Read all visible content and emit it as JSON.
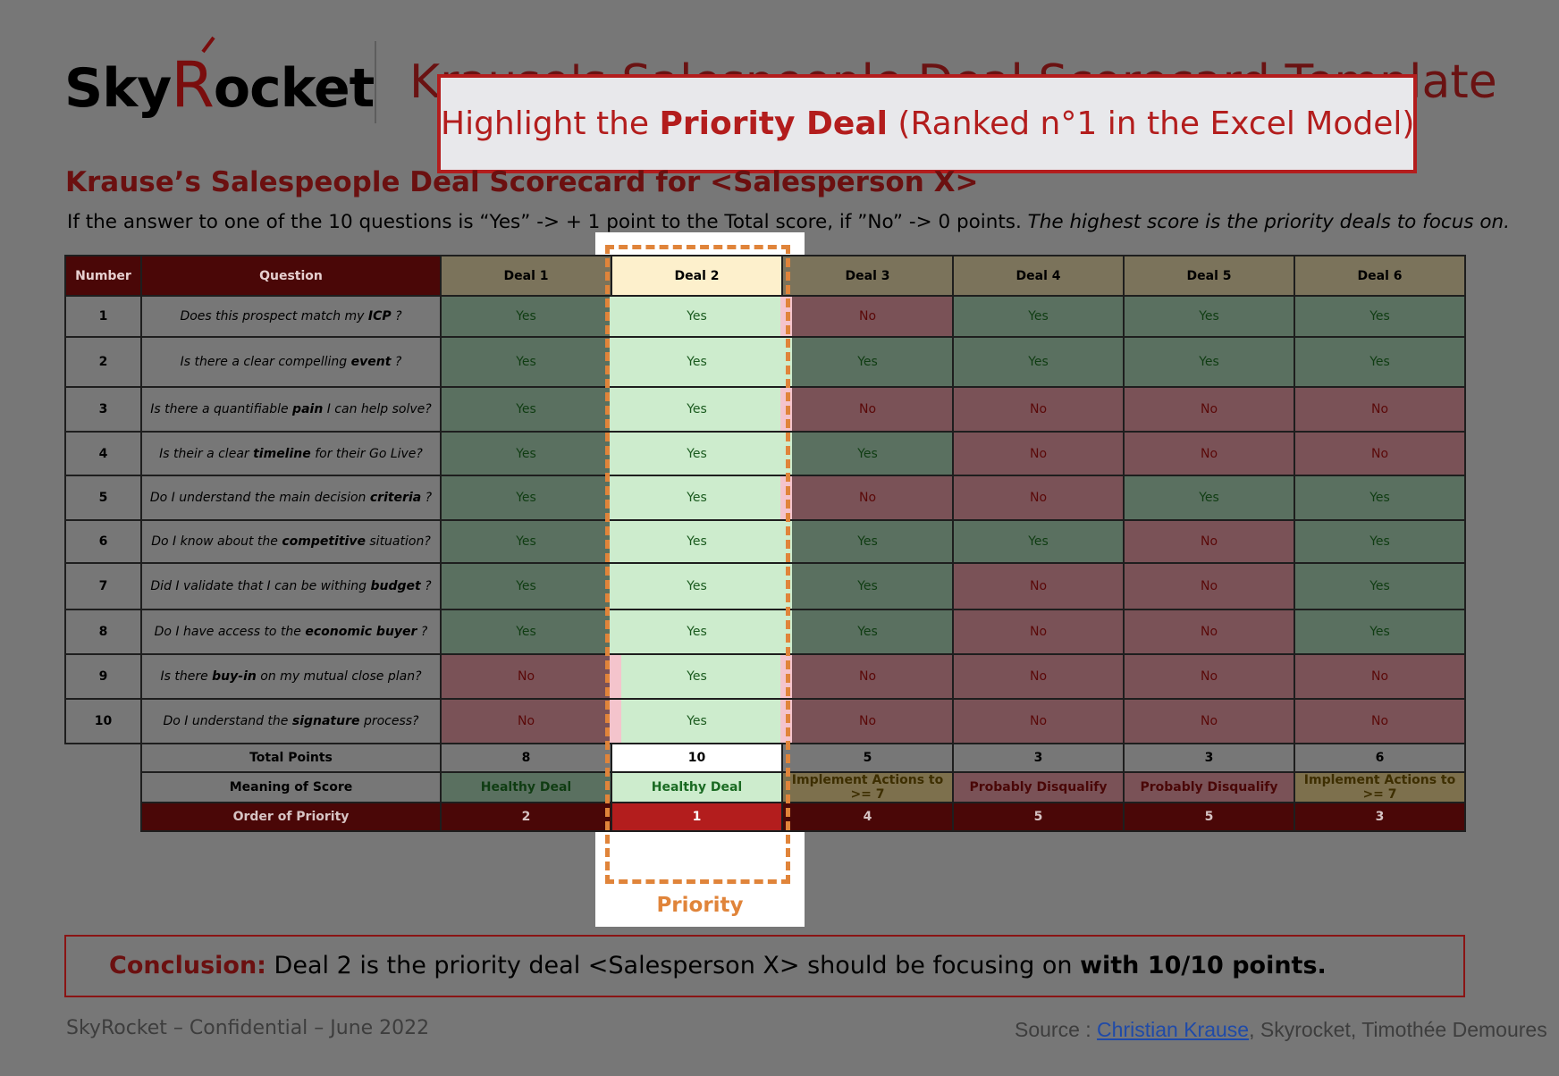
{
  "logo": {
    "text_part1": "Sky",
    "text_r": "R",
    "text_part2": "ocket"
  },
  "background_title": "Krause's Salespeople Deal Scorecard Template",
  "banner": {
    "prefix": "Highlight the ",
    "strong": "Priority Deal",
    "suffix": " (Ranked n°1 in the Excel Model)"
  },
  "card_title": "Krause’s Salespeople Deal Scorecard for <Salesperson X>",
  "intro": {
    "text": "If the answer to one of the 10 questions is “Yes” -> + 1 point to the Total score, if ”No” -> 0 points. ",
    "italic": "The highest score is the priority deals to focus on."
  },
  "table": {
    "headers": {
      "number": "Number",
      "question": "Question",
      "deals": [
        "Deal 1",
        "Deal 2",
        "Deal 3",
        "Deal 4",
        "Deal 5",
        "Deal 6"
      ]
    },
    "rows": [
      {
        "n": "1",
        "q_pre": "Does this prospect match my ",
        "q_bold": "ICP",
        "q_post": " ?",
        "a": [
          "Yes",
          "Yes",
          "No",
          "Yes",
          "Yes",
          "Yes"
        ]
      },
      {
        "n": "2",
        "q_pre": "Is there a clear compelling ",
        "q_bold": "event",
        "q_post": " ?",
        "a": [
          "Yes",
          "Yes",
          "Yes",
          "Yes",
          "Yes",
          "Yes"
        ]
      },
      {
        "n": "3",
        "q_pre": "Is there a quantifiable ",
        "q_bold": "pain",
        "q_post": " I can help solve?",
        "a": [
          "Yes",
          "Yes",
          "No",
          "No",
          "No",
          "No"
        ]
      },
      {
        "n": "4",
        "q_pre": "Is their a clear ",
        "q_bold": "timeline",
        "q_post": " for their Go Live?",
        "a": [
          "Yes",
          "Yes",
          "Yes",
          "No",
          "No",
          "No"
        ]
      },
      {
        "n": "5",
        "q_pre": "Do I understand the main decision ",
        "q_bold": "criteria",
        "q_post": " ?",
        "a": [
          "Yes",
          "Yes",
          "No",
          "No",
          "Yes",
          "Yes"
        ]
      },
      {
        "n": "6",
        "q_pre": "Do I know about the ",
        "q_bold": "competitive",
        "q_post": " situation?",
        "a": [
          "Yes",
          "Yes",
          "Yes",
          "Yes",
          "No",
          "Yes"
        ]
      },
      {
        "n": "7",
        "q_pre": "Did I validate that I can be withing ",
        "q_bold": "budget",
        "q_post": " ?",
        "a": [
          "Yes",
          "Yes",
          "Yes",
          "No",
          "No",
          "Yes"
        ]
      },
      {
        "n": "8",
        "q_pre": "Do I have access to the ",
        "q_bold": "economic buyer",
        "q_post": " ?",
        "a": [
          "Yes",
          "Yes",
          "Yes",
          "No",
          "No",
          "Yes"
        ]
      },
      {
        "n": "9",
        "q_pre": "Is there ",
        "q_bold": "buy-in",
        "q_post": " on my mutual close plan?",
        "a": [
          "No",
          "Yes",
          "No",
          "No",
          "No",
          "No"
        ]
      },
      {
        "n": "10",
        "q_pre": "Do I understand the ",
        "q_bold": "signature",
        "q_post": " process?",
        "a": [
          "No",
          "Yes",
          "No",
          "No",
          "No",
          "No"
        ]
      }
    ],
    "total": {
      "label": "Total Points",
      "values": [
        "8",
        "10",
        "5",
        "3",
        "3",
        "6"
      ]
    },
    "meaning": {
      "label": "Meaning of Score",
      "values": [
        "Healthy Deal",
        "Healthy Deal",
        "Implement Actions to >= 7",
        "Probably Disqualify",
        "Probably Disqualify",
        "Implement Actions to >= 7"
      ]
    },
    "order": {
      "label": "Order of Priority",
      "values": [
        "2",
        "1",
        "4",
        "5",
        "5",
        "3"
      ]
    }
  },
  "priority_label": "Priority",
  "conclusion": {
    "lead": "Conclusion:",
    "text": " Deal 2 is the priority deal <Salesperson X> should be focusing on ",
    "strong": "with 10/10 points."
  },
  "footer": {
    "left": "SkyRocket – Confidential – June 2022",
    "source_prefix": "Source : ",
    "source_link": "Christian Krause",
    "source_suffix": ", Skyrocket, Timothée Demoures"
  },
  "colors": {
    "yes_cell": "#5a7060",
    "no_cell": "#7a5257",
    "highlight": "#cdeccd",
    "accent_red": "#b31d1d",
    "dash_orange": "#e0843a"
  }
}
